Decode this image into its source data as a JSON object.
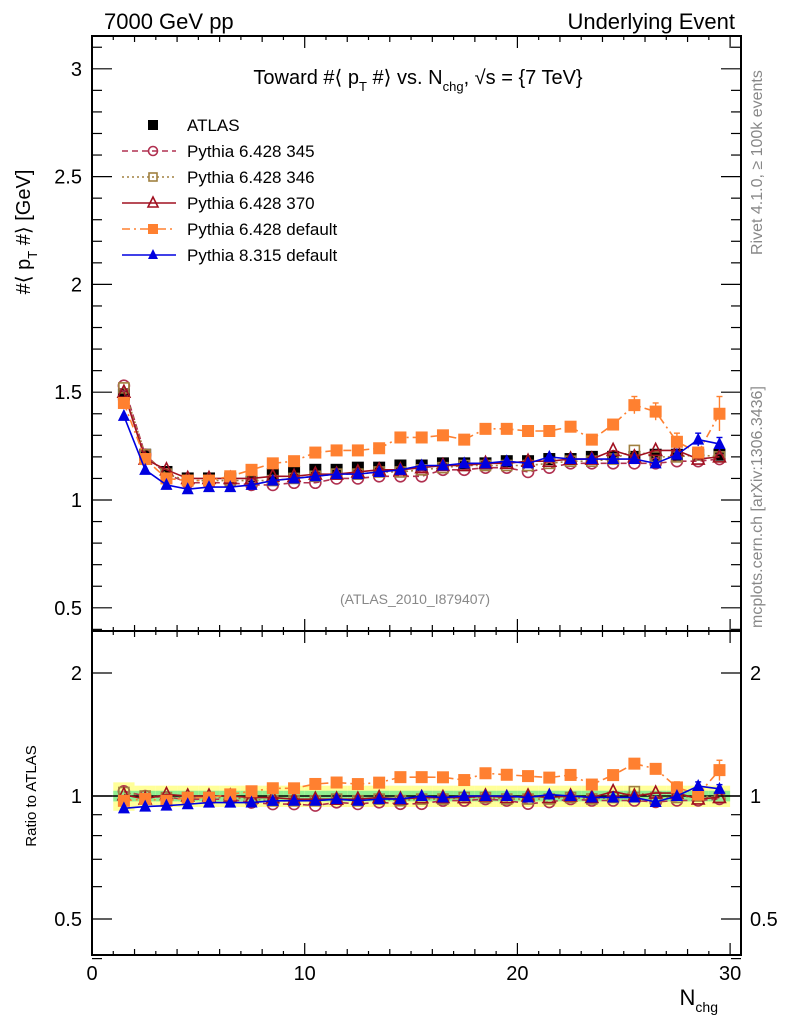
{
  "header": {
    "left": "7000 GeV pp",
    "right": "Underlying Event"
  },
  "side_labels": {
    "rivet": "Rivet 4.1.0, ≥ 100k events",
    "mcplots": "mcplots.cern.ch [arXiv:1306.3436]"
  },
  "chart_data": {
    "type": "line",
    "title": "Toward #⟨ p_T #⟩ vs. N_chg, √s = {7 TeV}",
    "title_parts": {
      "a": "Toward #⟨ p",
      "sub1": "T",
      "b": " #⟩ vs. N",
      "sub2": "chg",
      "c": ", √s = {7 TeV}"
    },
    "analysis_label": "(ATLAS_2010_I879407)",
    "xlabel": "N",
    "xlabel_sub": "chg",
    "ylabel_parts": {
      "a": "#⟨ p",
      "sub": "T",
      "b": " #⟩ [GeV]"
    },
    "ratio_ylabel": "Ratio to ATLAS",
    "xlim": [
      0,
      30.5
    ],
    "ylim": [
      0.35,
      3.15
    ],
    "ratio_ylim": [
      0.35,
      2.35
    ],
    "x_ticks": [
      "0",
      "10",
      "20",
      "30"
    ],
    "y_ticks": [
      "0.5",
      "1",
      "1.5",
      "2",
      "2.5",
      "3"
    ],
    "ratio_y_ticks": [
      "0.5",
      "1",
      "2"
    ],
    "legend_position": "top-left",
    "x": [
      1.5,
      2.5,
      3.5,
      4.5,
      5.5,
      6.5,
      7.5,
      8.5,
      9.5,
      10.5,
      11.5,
      12.5,
      13.5,
      14.5,
      15.5,
      16.5,
      17.5,
      18.5,
      19.5,
      20.5,
      21.5,
      22.5,
      23.5,
      24.5,
      25.5,
      26.5,
      27.5,
      28.5,
      29.5
    ],
    "series": [
      {
        "name": "ATLAS",
        "color": "#000000",
        "marker": "square-filled",
        "line": "none",
        "values": [
          1.49,
          1.21,
          1.13,
          1.1,
          1.1,
          1.1,
          1.11,
          1.12,
          1.13,
          1.14,
          1.14,
          1.15,
          1.15,
          1.16,
          1.16,
          1.17,
          1.17,
          1.17,
          1.18,
          1.18,
          1.19,
          1.19,
          1.2,
          1.2,
          1.2,
          1.21,
          1.21,
          1.21,
          1.21
        ]
      },
      {
        "name": "Pythia 6.428 345",
        "color": "#b03050",
        "marker": "circle-open",
        "line": "dashed",
        "values": [
          1.53,
          1.21,
          1.12,
          1.08,
          1.08,
          1.08,
          1.07,
          1.07,
          1.08,
          1.08,
          1.1,
          1.1,
          1.11,
          1.11,
          1.11,
          1.14,
          1.14,
          1.15,
          1.15,
          1.13,
          1.15,
          1.17,
          1.17,
          1.17,
          1.17,
          1.17,
          1.18,
          1.18,
          1.19
        ]
      },
      {
        "name": "Pythia 6.428 346",
        "color": "#a08040",
        "marker": "square-open",
        "line": "dotted",
        "values": [
          1.52,
          1.21,
          1.12,
          1.09,
          1.09,
          1.09,
          1.09,
          1.09,
          1.1,
          1.11,
          1.12,
          1.12,
          1.13,
          1.13,
          1.14,
          1.15,
          1.16,
          1.16,
          1.16,
          1.16,
          1.17,
          1.18,
          1.18,
          1.19,
          1.23,
          1.2,
          1.2,
          1.21,
          1.2
        ]
      },
      {
        "name": "Pythia 6.428 370",
        "color": "#a01020",
        "marker": "triangle-open",
        "line": "solid",
        "values": [
          1.5,
          1.19,
          1.14,
          1.1,
          1.1,
          1.1,
          1.1,
          1.11,
          1.11,
          1.12,
          1.12,
          1.13,
          1.14,
          1.14,
          1.15,
          1.16,
          1.16,
          1.17,
          1.17,
          1.18,
          1.18,
          1.19,
          1.19,
          1.23,
          1.2,
          1.23,
          1.23,
          1.19,
          1.2
        ]
      },
      {
        "name": "Pythia 6.428 default",
        "color": "#ff8030",
        "marker": "square-filled",
        "line": "dashdot",
        "values": [
          1.45,
          1.19,
          1.1,
          1.09,
          1.09,
          1.11,
          1.14,
          1.17,
          1.18,
          1.22,
          1.23,
          1.23,
          1.24,
          1.29,
          1.29,
          1.3,
          1.28,
          1.33,
          1.33,
          1.32,
          1.32,
          1.34,
          1.28,
          1.35,
          1.44,
          1.41,
          1.27,
          1.22,
          1.4
        ],
        "errors": [
          0,
          0,
          0,
          0,
          0,
          0,
          0,
          0,
          0,
          0,
          0,
          0,
          0,
          0,
          0,
          0,
          0,
          0,
          0,
          0,
          0,
          0,
          0,
          0.02,
          0.04,
          0.04,
          0.04,
          0.02,
          0.08
        ]
      },
      {
        "name": "Pythia 8.315 default",
        "color": "#0000e0",
        "marker": "triangle-filled",
        "line": "solid",
        "values": [
          1.39,
          1.14,
          1.07,
          1.05,
          1.06,
          1.06,
          1.07,
          1.09,
          1.1,
          1.11,
          1.12,
          1.12,
          1.13,
          1.14,
          1.16,
          1.16,
          1.17,
          1.17,
          1.18,
          1.17,
          1.2,
          1.19,
          1.19,
          1.19,
          1.19,
          1.17,
          1.21,
          1.28,
          1.26
        ],
        "errors": [
          0,
          0,
          0,
          0,
          0,
          0,
          0,
          0,
          0,
          0,
          0,
          0,
          0,
          0,
          0,
          0,
          0,
          0,
          0,
          0,
          0,
          0,
          0,
          0,
          0,
          0,
          0,
          0.03,
          0.03
        ]
      }
    ],
    "ratio_band": {
      "inner_color": "#90ee90",
      "outer_color": "#ffff99",
      "inner_halfwidth": 0.03,
      "outer_halfwidth": 0.06
    }
  }
}
